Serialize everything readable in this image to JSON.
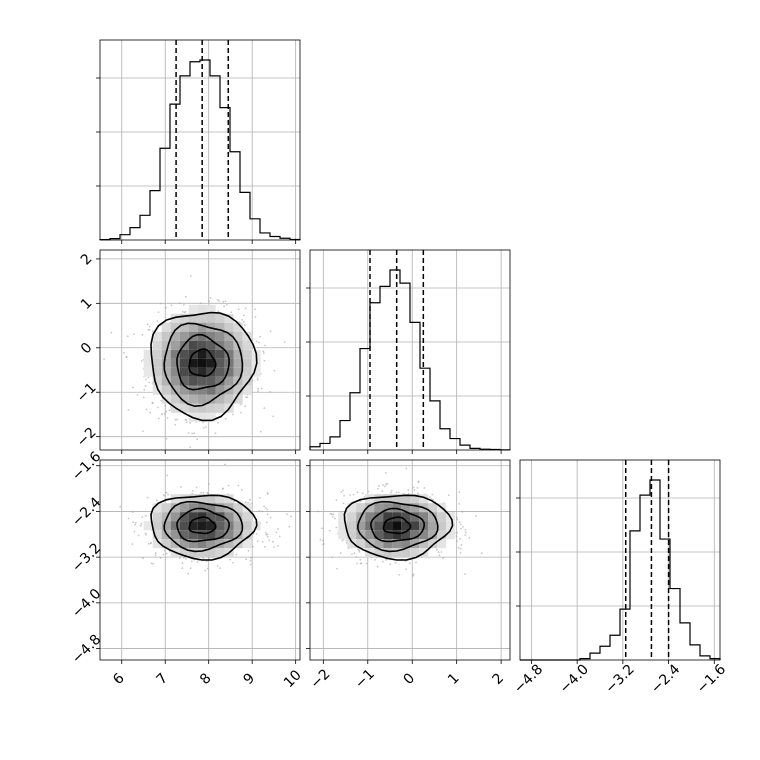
{
  "figure": {
    "type": "corner-plot"
  },
  "colors": {
    "hist": "#000000",
    "grid": "#b0b0b0",
    "scatter": "#9a9a9a",
    "contour": "#000000"
  },
  "chart_data": {
    "type": "corner",
    "grid": true,
    "quantile_lines": "dashed",
    "axes": {
      "p0": {
        "range": [
          5.5,
          10.1
        ],
        "ticks": [
          6,
          7,
          8,
          9,
          10
        ],
        "tick_labels": [
          "6",
          "7",
          "8",
          "9",
          "10"
        ]
      },
      "p1": {
        "range": [
          -2.3,
          2.2
        ],
        "ticks": [
          -2,
          -1,
          0,
          1,
          2
        ],
        "tick_labels": [
          "−2",
          "−1",
          "0",
          "1",
          "2"
        ]
      },
      "p2": {
        "range": [
          -5.0,
          -1.5
        ],
        "ticks": [
          -4.8,
          -4.0,
          -3.2,
          -2.4,
          -1.6
        ],
        "tick_labels": [
          "−4.8",
          "−4.0",
          "−3.2",
          "−2.4",
          "−1.6"
        ]
      }
    },
    "histograms": [
      {
        "param": "p0",
        "bin_edges": [
          5.5,
          5.73,
          5.96,
          6.19,
          6.42,
          6.65,
          6.88,
          7.11,
          7.34,
          7.57,
          7.8,
          8.03,
          8.26,
          8.49,
          8.72,
          8.95,
          9.18,
          9.41,
          9.64,
          9.87,
          10.1
        ],
        "counts": [
          0.2,
          0.8,
          3,
          7,
          14,
          28,
          52,
          77,
          93,
          101,
          102,
          93,
          75,
          50,
          27,
          12,
          4,
          2,
          1,
          0.3
        ],
        "quantiles": [
          7.25,
          7.85,
          8.45
        ]
      },
      {
        "param": "p1",
        "bin_edges": [
          -2.3,
          -2.075,
          -1.85,
          -1.625,
          -1.4,
          -1.175,
          -0.95,
          -0.725,
          -0.5,
          -0.275,
          -0.05,
          0.175,
          0.4,
          0.625,
          0.85,
          1.075,
          1.3,
          1.525,
          1.75,
          1.975,
          2.2
        ],
        "counts": [
          2,
          4,
          8,
          18,
          35,
          62,
          90,
          100,
          110,
          102,
          78,
          50,
          30,
          13,
          7,
          3,
          1,
          0.5,
          0.3,
          0.1
        ],
        "quantiles": [
          -0.95,
          -0.35,
          0.25
        ]
      },
      {
        "param": "p2",
        "bin_edges": [
          -5.0,
          -4.825,
          -4.65,
          -4.475,
          -4.3,
          -4.125,
          -3.95,
          -3.775,
          -3.6,
          -3.425,
          -3.25,
          -3.075,
          -2.9,
          -2.725,
          -2.55,
          -2.375,
          -2.2,
          -2.025,
          -1.85,
          -1.675,
          -1.5
        ],
        "counts": [
          0,
          0,
          0,
          0,
          0,
          0,
          1,
          5,
          10,
          18,
          37,
          94,
          120,
          131,
          88,
          52,
          27,
          11,
          3,
          1
        ],
        "quantiles": [
          -3.15,
          -2.7,
          -2.4
        ]
      }
    ],
    "scatter_2d": [
      {
        "x": "p0",
        "y": "p1",
        "center": [
          7.85,
          -0.35
        ],
        "spread": [
          0.6,
          0.6
        ],
        "contour_levels": 4
      },
      {
        "x": "p0",
        "y": "p2",
        "center": [
          7.85,
          -2.65
        ],
        "spread": [
          0.6,
          0.28
        ],
        "contour_levels": 4
      },
      {
        "x": "p1",
        "y": "p2",
        "center": [
          -0.35,
          -2.65
        ],
        "spread": [
          0.6,
          0.28
        ],
        "contour_levels": 4
      }
    ]
  }
}
